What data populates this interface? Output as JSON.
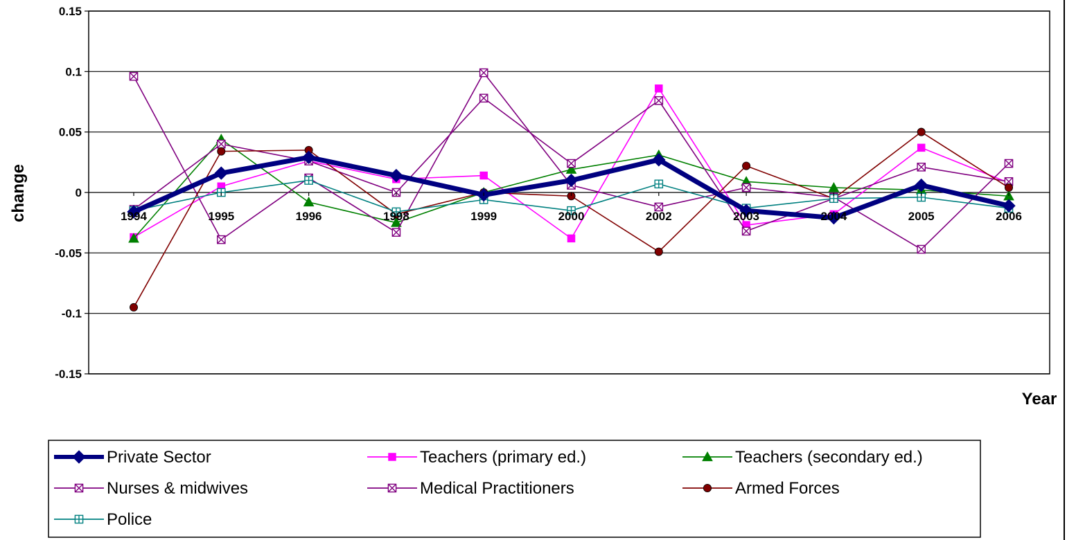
{
  "chart_data": {
    "type": "line",
    "title": "",
    "xlabel": "Year",
    "ylabel": "change",
    "ylim": [
      -0.15,
      0.15
    ],
    "yticks": [
      "0.15",
      "0.1",
      "0.05",
      "0",
      "-0.05",
      "-0.1",
      "-0.15"
    ],
    "grid": "horizontal",
    "legend_position": "bottom",
    "categories": [
      "1994",
      "1995",
      "1996",
      "1998",
      "1999",
      "2000",
      "2002",
      "2003",
      "2004",
      "2005",
      "2006"
    ],
    "series": [
      {
        "name": "Private Sector",
        "color": "#000080",
        "marker": "diamond",
        "values": [
          -0.016,
          0.016,
          0.029,
          0.014,
          -0.002,
          0.01,
          0.027,
          -0.015,
          -0.021,
          0.006,
          -0.011
        ]
      },
      {
        "name": "Teachers (primary ed.)",
        "color": "#FF00FF",
        "marker": "square",
        "values": [
          -0.037,
          0.005,
          0.026,
          0.011,
          0.014,
          -0.038,
          0.086,
          -0.027,
          -0.018,
          0.037,
          0.008
        ]
      },
      {
        "name": "Teachers (secondary ed.)",
        "color": "#008000",
        "marker": "triangle",
        "values": [
          -0.038,
          0.044,
          -0.008,
          -0.025,
          0.0,
          0.019,
          0.031,
          0.009,
          0.004,
          0.002,
          -0.003
        ]
      },
      {
        "name": "Nurses & midwives",
        "color": "#800080",
        "marker": "square-x",
        "values": [
          0.096,
          -0.039,
          0.012,
          -0.033,
          0.099,
          0.006,
          -0.012,
          0.004,
          -0.004,
          -0.047,
          0.024
        ]
      },
      {
        "name": "Medical Practitioners",
        "color": "#800080",
        "marker": "square-x",
        "values": [
          -0.014,
          0.04,
          0.026,
          0.0,
          0.078,
          0.024,
          0.076,
          -0.032,
          -0.005,
          0.021,
          0.009
        ]
      },
      {
        "name": "Armed Forces",
        "color": "#800000",
        "marker": "circle",
        "values": [
          -0.095,
          0.034,
          0.035,
          -0.018,
          0.0,
          -0.003,
          -0.049,
          0.022,
          -0.005,
          0.05,
          0.004
        ]
      },
      {
        "name": "Police",
        "color": "#008080",
        "marker": "square-plus",
        "values": [
          -0.015,
          0.0,
          0.01,
          -0.016,
          -0.006,
          -0.015,
          0.007,
          -0.013,
          -0.005,
          -0.004,
          -0.013
        ]
      }
    ]
  }
}
